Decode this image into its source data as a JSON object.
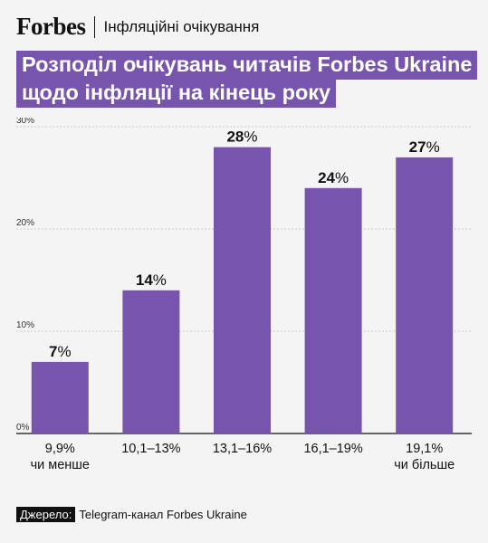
{
  "header": {
    "brand": "Forbes",
    "section": "Інфляційні очікування"
  },
  "title": {
    "line1": "Розподіл очікувань читачів Forbes Ukraine",
    "line2": "щодо інфляції на кінець року"
  },
  "source": {
    "label": "Джерело:",
    "text": "Telegram-канал Forbes Ukraine"
  },
  "colors": {
    "accent": "#7755ad",
    "bar": "#7755ad"
  },
  "chart_data": {
    "type": "bar",
    "categories": [
      [
        "9,9%",
        "чи менше"
      ],
      [
        "10,1–13%"
      ],
      [
        "13,1–16%"
      ],
      [
        "16,1–19%"
      ],
      [
        "19,1%",
        "чи більше"
      ]
    ],
    "values": [
      7,
      14,
      28,
      24,
      27
    ],
    "data_labels": [
      "7%",
      "14%",
      "28%",
      "24%",
      "27%"
    ],
    "ylim": [
      0,
      30
    ],
    "yticks": [
      0,
      10,
      20,
      30
    ],
    "ytick_labels": [
      "0%",
      "10%",
      "20%",
      "30%"
    ],
    "grid": true
  }
}
